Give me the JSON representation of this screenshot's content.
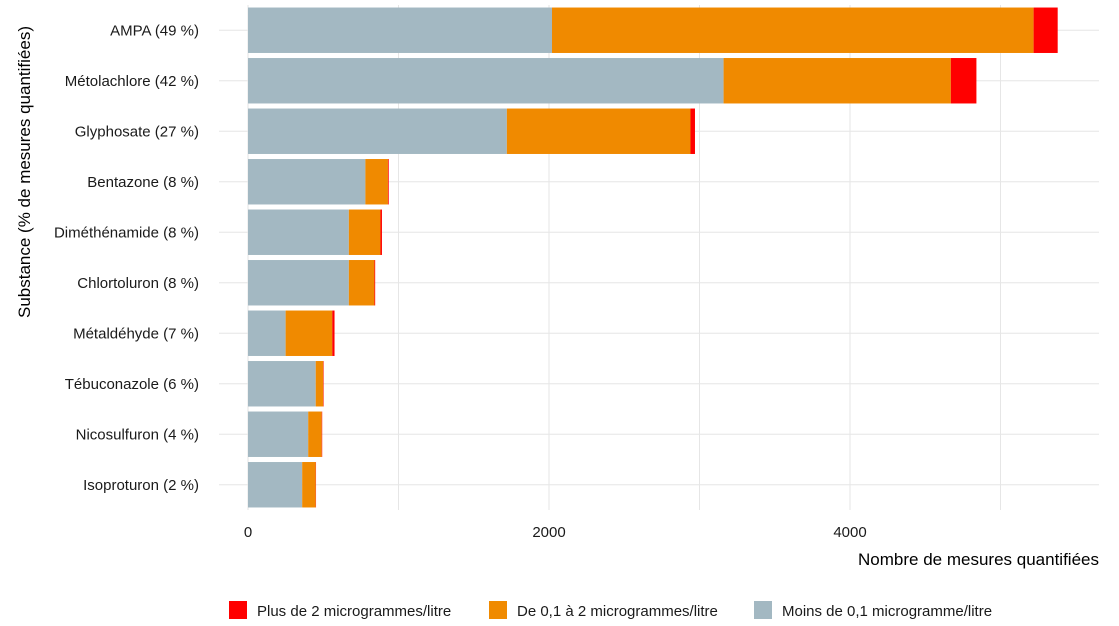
{
  "chart_data": {
    "type": "bar",
    "orientation": "horizontal",
    "stacked": true,
    "categories": [
      "AMPA (49 %)",
      "Métolachlore (42 %)",
      "Glyphosate (27 %)",
      "Bentazone (8 %)",
      "Diméthénamide (8 %)",
      "Chlortoluron (8 %)",
      "Métaldéhyde (7 %)",
      "Tébuconazole (6 %)",
      "Nicosulfuron (4 %)",
      "Isoproturon (2 %)"
    ],
    "series": [
      {
        "name": "Moins de 0,1 microgramme/litre",
        "color": "#a3b8c2",
        "values": [
          2020,
          3160,
          1720,
          780,
          670,
          670,
          250,
          450,
          400,
          360
        ]
      },
      {
        "name": "De 0,1 à 2 microgrammes/litre",
        "color": "#f08a00",
        "values": [
          3200,
          1510,
          1220,
          150,
          210,
          170,
          310,
          50,
          90,
          90
        ]
      },
      {
        "name": "Plus de 2 microgrammes/litre",
        "color": "#ff0000",
        "values": [
          160,
          170,
          30,
          5,
          10,
          5,
          15,
          3,
          3,
          2
        ]
      }
    ],
    "legend_order": [
      "Plus de 2 microgrammes/litre",
      "De 0,1 à 2 microgrammes/litre",
      "Moins de 0,1 microgramme/litre"
    ],
    "xlabel": "Nombre de mesures quantifiées",
    "ylabel": "Substance (% de mesures quantifiées)",
    "xticks": [
      0,
      2000,
      4000
    ],
    "xtick_labels": [
      "0",
      "2000",
      "4000"
    ],
    "xlim": [
      -200,
      5650
    ],
    "grid": true,
    "legend_position": "bottom"
  }
}
